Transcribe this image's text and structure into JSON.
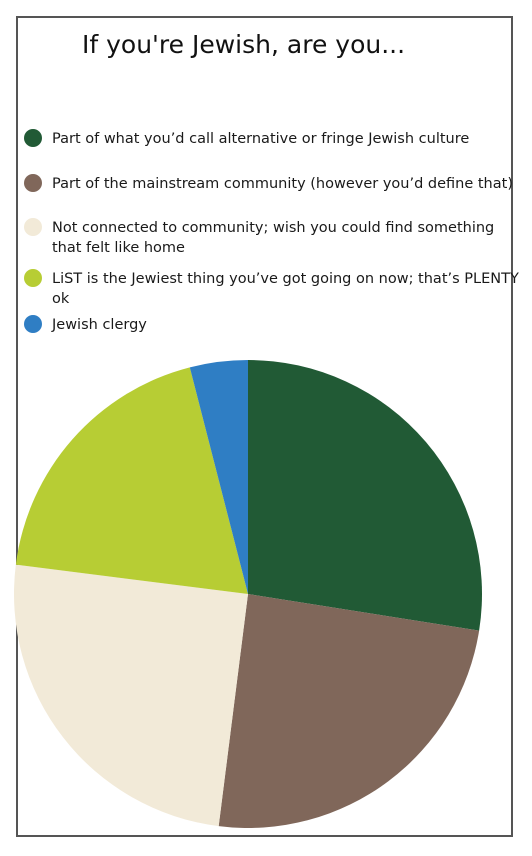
{
  "chart_data": {
    "type": "pie",
    "title": "If you're Jewish, are you...",
    "slices": [
      {
        "label": "Part of what you’d call alternative or fringe Jewish culture",
        "value": 27.5,
        "color": "#215a35"
      },
      {
        "label": " Part of the mainstream community (however you’d define that)",
        "value": 24.5,
        "color": "#80675a"
      },
      {
        "label": "Not connected to community; wish you could find something\nthat felt like home",
        "value": 25,
        "color": "#f2ead8"
      },
      {
        "label": "LiST is the Jewiest thing you’ve got going on now; that’s PLENTY ok",
        "value": 19,
        "color": "#b7cd34"
      },
      {
        "label": "Jewish clergy",
        "value": 4,
        "color": "#2f7ec4"
      }
    ],
    "legend": "top-left",
    "start_angle": "12 o'clock",
    "direction": "clockwise"
  }
}
